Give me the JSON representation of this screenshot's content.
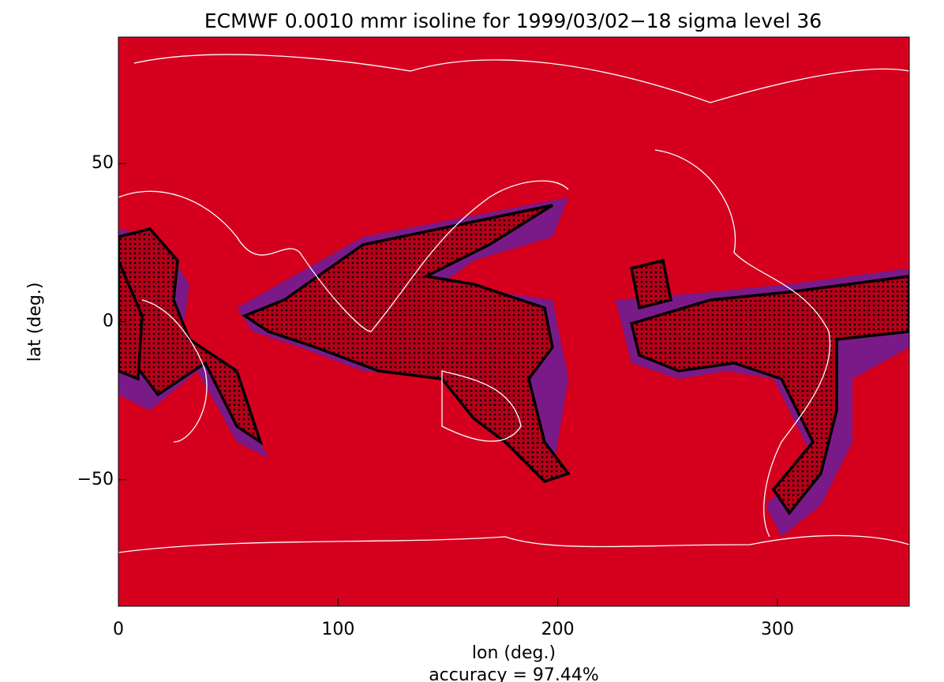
{
  "chart_data": {
    "type": "map",
    "title": "ECMWF  0.0010 mmr isoline for 1999/03/02−18 sigma level 36",
    "xlabel": "lon (deg.)",
    "ylabel": "lat (deg.)",
    "annotation": "accuracy =  97.44%",
    "xlim": [
      0,
      360
    ],
    "ylim": [
      -90,
      90
    ],
    "xticks": [
      0,
      100,
      200,
      300
    ],
    "yticks": [
      {
        "value": -50,
        "label": "−50"
      },
      0,
      50
    ],
    "color": "#d4001e"
  }
}
